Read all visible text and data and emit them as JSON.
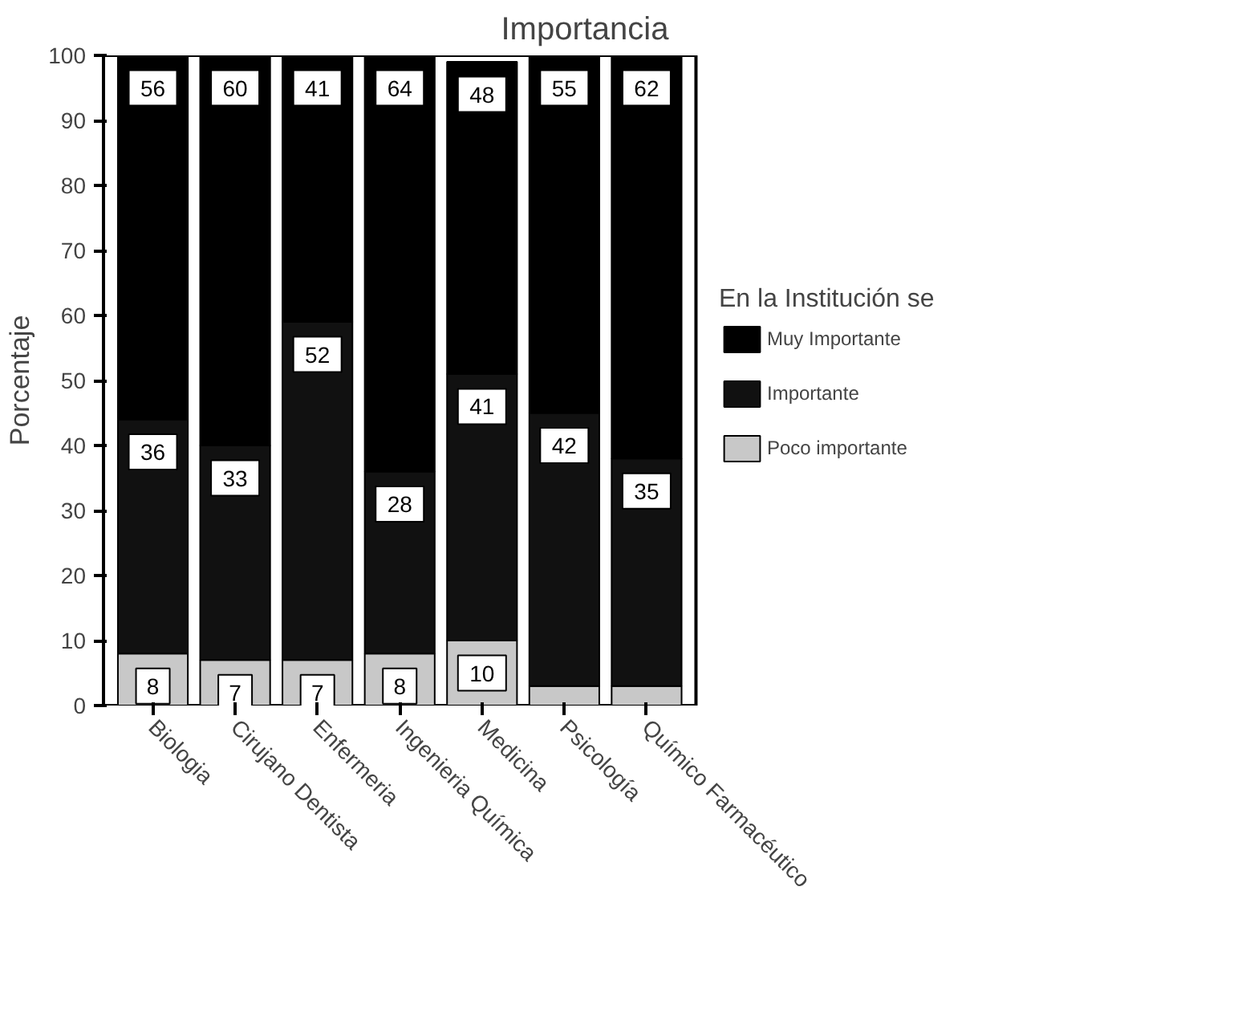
{
  "chart_data": {
    "type": "bar",
    "title": "Importancia",
    "ylabel": "Porcentaje",
    "legend_title": "En la Institución se",
    "categories": [
      "Biologia",
      "Cirujano Dentista",
      "Enfermeria",
      "Ingenieria Química",
      "Medicina",
      "Psicología",
      "Químico Farmacéutico"
    ],
    "stacked": true,
    "ylim": [
      0,
      100
    ],
    "yticks": [
      0,
      10,
      20,
      30,
      40,
      50,
      60,
      70,
      80,
      90,
      100
    ],
    "grid": false,
    "legend": "right",
    "series": [
      {
        "name": "Poco importante",
        "color": "#c8c8c8",
        "values": [
          8,
          7,
          7,
          8,
          10,
          3,
          3
        ],
        "value_labels": [
          "8",
          "7",
          "7",
          "8",
          "10",
          null,
          null
        ]
      },
      {
        "name": "Importante",
        "color": "#111111",
        "values": [
          36,
          33,
          52,
          28,
          41,
          42,
          35
        ],
        "value_labels": [
          "36",
          "33",
          "52",
          "28",
          "41",
          "42",
          "35"
        ]
      },
      {
        "name": "Muy Importante",
        "color": "#000000",
        "values": [
          56,
          60,
          41,
          64,
          48,
          55,
          62
        ],
        "value_labels": [
          "56",
          "60",
          "41",
          "64",
          "48",
          "55",
          "62"
        ]
      }
    ]
  }
}
